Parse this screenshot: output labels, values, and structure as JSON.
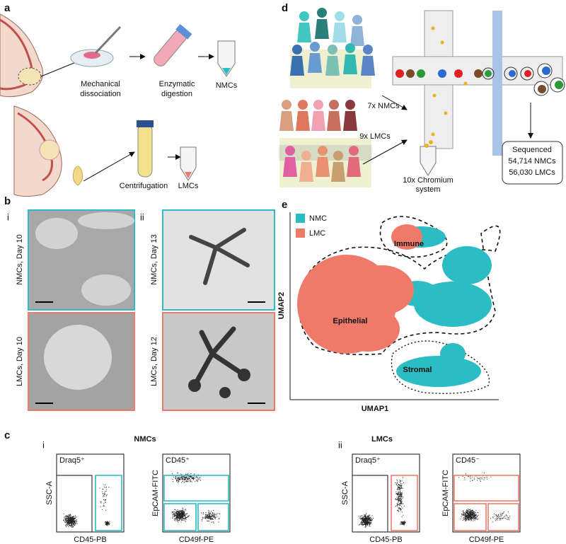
{
  "panel_a": {
    "label": "a",
    "row1": {
      "step1": [
        "Mechanical",
        "dissociation"
      ],
      "step2": [
        "Enzymatic",
        "digestion"
      ],
      "product": "NMCs"
    },
    "row2": {
      "step1": "Centrifugation",
      "product": "LMCs"
    }
  },
  "panel_d": {
    "label": "d",
    "arrow1": "7x NMCs",
    "arrow2": "9x LMCs",
    "device": [
      "10x Chromium",
      "system"
    ],
    "result": [
      "Sequenced",
      "54,714 NMCs",
      "56,030 LMCs"
    ]
  },
  "panel_b": {
    "label": "b",
    "sub": [
      "i",
      "ii"
    ],
    "images": [
      "NMCs, Day 10",
      "LMCs, Day 10",
      "NMCs, Day 13",
      "LMCs, Day 12"
    ]
  },
  "panel_e": {
    "label": "e",
    "legend": [
      "NMC",
      "LMC"
    ],
    "clusters": [
      "Immune",
      "Epithelial",
      "Stromal"
    ],
    "y_axis": "UMAP2",
    "x_axis": "UMAP1"
  },
  "panel_c": {
    "label": "c",
    "groups": [
      {
        "sub": "i",
        "title": "NMCs",
        "plots": [
          {
            "gate": "Draq5⁺",
            "y_axis": "SSC-A",
            "x_axis": "CD45-PB"
          },
          {
            "gate": "CD45⁺",
            "y_axis": "EpCAM-FITC",
            "x_axis": "CD49f-PE"
          }
        ]
      },
      {
        "sub": "ii",
        "title": "LMCs",
        "plots": [
          {
            "gate": "Draq5⁺",
            "y_axis": "SSC-A",
            "x_axis": "CD45-PB"
          },
          {
            "gate": "CD45⁻",
            "y_axis": "EpCAM-FITC",
            "x_axis": "CD49f-PE"
          }
        ]
      }
    ]
  }
}
